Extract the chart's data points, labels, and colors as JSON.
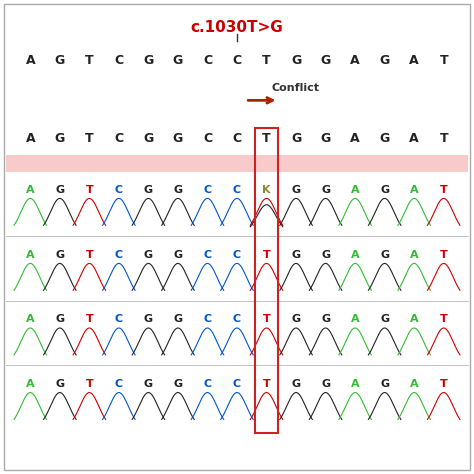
{
  "title": "c.1030T>G",
  "title_color": "#cc0000",
  "sequence_top": [
    "A",
    "G",
    "T",
    "C",
    "G",
    "G",
    "C",
    "C",
    "T",
    "G",
    "G",
    "A",
    "G",
    "A",
    "T"
  ],
  "sequence_row1": [
    "A",
    "G",
    "T",
    "C",
    "G",
    "G",
    "C",
    "C",
    "T",
    "G",
    "G",
    "A",
    "G",
    "A",
    "T"
  ],
  "sequence_row2": [
    "A",
    "G",
    "T",
    "C",
    "G",
    "G",
    "C",
    "C",
    "K",
    "G",
    "G",
    "A",
    "G",
    "A",
    "T"
  ],
  "sequence_row3": [
    "A",
    "G",
    "T",
    "C",
    "G",
    "G",
    "C",
    "C",
    "T",
    "G",
    "G",
    "A",
    "G",
    "A",
    "T"
  ],
  "sequence_row4": [
    "A",
    "G",
    "T",
    "C",
    "G",
    "G",
    "C",
    "C",
    "T",
    "G",
    "G",
    "A",
    "G",
    "A",
    "T"
  ],
  "seq_color_normal": "#222222",
  "seq_color_k": "#888833",
  "conflict_label": "Conflict",
  "conflict_arrow_color": "#aa2200",
  "highlight_color": "#f5a0a0",
  "highlight_alpha": 0.55,
  "box_color": "#cc2222",
  "conflict_col_index": 8,
  "n_cols": 15,
  "background_color": "#ffffff",
  "wave_colors": {
    "A": "#33bb33",
    "T": "#cc0000",
    "G": "#222222",
    "C": "#0055cc",
    "K": "#888833"
  }
}
